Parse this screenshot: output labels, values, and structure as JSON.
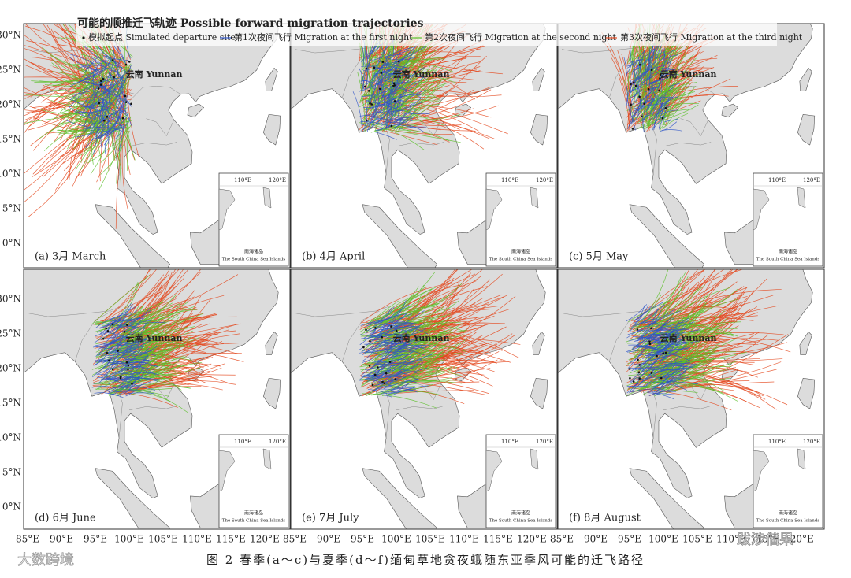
{
  "legend": {
    "title": "可能的顺推迁飞轨迹 Possible forward migration trajectories",
    "items": [
      {
        "name": "模拟起点 Simulated departure site",
        "color": "#111111"
      },
      {
        "name": "第1次夜间飞行 Migration at the first night",
        "color": "#2f55c8"
      },
      {
        "name": "第2次夜间飞行 Migration at the second night",
        "color": "#5cbf2a"
      },
      {
        "name": "第3次夜间飞行 Migration at the third night",
        "color": "#e4461c"
      }
    ]
  },
  "panels": [
    {
      "label": "(a) 3月 March",
      "place": "云南 Yunnan"
    },
    {
      "label": "(b) 4月 April",
      "place": "云南 Yunnan"
    },
    {
      "label": "(c) 5月 May",
      "place": "云南 Yunnan"
    },
    {
      "label": "(d) 6月 June",
      "place": "云南 Yunnan"
    },
    {
      "label": "(e) 7月 July",
      "place": "云南 Yunnan"
    },
    {
      "label": "(f) 8月 August",
      "place": "云南 Yunnan"
    }
  ],
  "inset": {
    "lon_labels": [
      "110°E",
      "120°E"
    ],
    "caption_cn": "南海诸岛",
    "caption_en": "The South China Sea Islands"
  },
  "y_axis_labels": [
    "30°N",
    "25°N",
    "20°N",
    "15°N",
    "10°N",
    "5°N",
    "0°N"
  ],
  "x_axis_labels": [
    "85°E",
    "90°E",
    "95°E",
    "100°E",
    "105°E",
    "110°E",
    "115°E",
    "120°E"
  ],
  "caption": "图 2    春季(a～c)与夏季(d～f)缅甸草地贪夜蛾随东亚季风可能的迁飞路径",
  "watermarks": [
    "大数跨境",
    "跋涉偕果"
  ]
}
